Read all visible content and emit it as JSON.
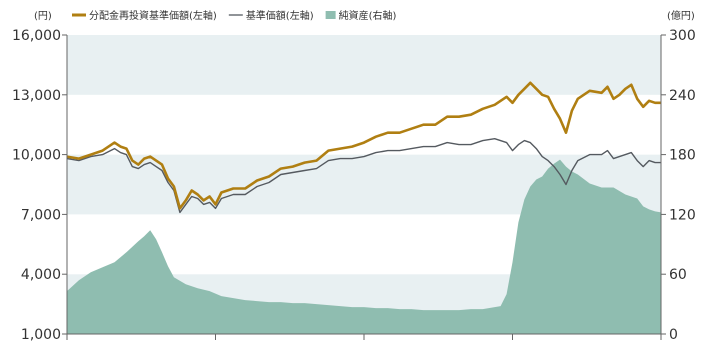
{
  "chart_data": {
    "type": "line",
    "left_unit": "(円)",
    "right_unit": "(億円)",
    "legend": [
      {
        "label": "分配金再投資基準価額(左軸)",
        "color": "#b07f12",
        "kind": "line-thick"
      },
      {
        "label": "基準価額(左軸)",
        "color": "#555a60",
        "kind": "line-thin"
      },
      {
        "label": "純資産(右軸)",
        "color": "#8fbdb0",
        "kind": "area"
      }
    ],
    "y_left": {
      "min": 1000,
      "max": 16000,
      "ticks": [
        "1,000",
        "4,000",
        "7,000",
        "10,000",
        "13,000",
        "16,000"
      ],
      "tick_values": [
        1000,
        4000,
        7000,
        10000,
        13000,
        16000
      ]
    },
    "y_right": {
      "min": 0,
      "max": 300,
      "ticks": [
        "0",
        "60",
        "120",
        "180",
        "240",
        "300"
      ],
      "tick_values": [
        0,
        60,
        120,
        180,
        240,
        300
      ]
    },
    "x_range": [
      0,
      100
    ],
    "x_ticks": [
      0,
      25,
      50,
      75,
      100
    ],
    "band_fills": [
      "#e8f0f2",
      "#ffffff",
      "#e8f0f2",
      "#ffffff",
      "#e8f0f2"
    ],
    "series": [
      {
        "name": "分配金再投資基準価額(左軸)",
        "axis": "left",
        "color": "#b07f12",
        "points": [
          [
            0,
            9900
          ],
          [
            2,
            9800
          ],
          [
            4,
            10000
          ],
          [
            6,
            10200
          ],
          [
            8,
            10600
          ],
          [
            9,
            10400
          ],
          [
            10,
            10300
          ],
          [
            11,
            9700
          ],
          [
            12,
            9500
          ],
          [
            13,
            9800
          ],
          [
            14,
            9900
          ],
          [
            15,
            9700
          ],
          [
            16,
            9500
          ],
          [
            17,
            8800
          ],
          [
            18,
            8400
          ],
          [
            19,
            7300
          ],
          [
            20,
            7700
          ],
          [
            21,
            8200
          ],
          [
            22,
            8000
          ],
          [
            23,
            7700
          ],
          [
            24,
            7900
          ],
          [
            25,
            7500
          ],
          [
            26,
            8100
          ],
          [
            27,
            8200
          ],
          [
            28,
            8300
          ],
          [
            30,
            8300
          ],
          [
            32,
            8700
          ],
          [
            34,
            8900
          ],
          [
            36,
            9300
          ],
          [
            38,
            9400
          ],
          [
            40,
            9600
          ],
          [
            42,
            9700
          ],
          [
            44,
            10200
          ],
          [
            46,
            10300
          ],
          [
            48,
            10400
          ],
          [
            50,
            10600
          ],
          [
            52,
            10900
          ],
          [
            54,
            11100
          ],
          [
            56,
            11100
          ],
          [
            58,
            11300
          ],
          [
            60,
            11500
          ],
          [
            62,
            11500
          ],
          [
            64,
            11900
          ],
          [
            66,
            11900
          ],
          [
            68,
            12000
          ],
          [
            70,
            12300
          ],
          [
            72,
            12500
          ],
          [
            74,
            12900
          ],
          [
            75,
            12600
          ],
          [
            76,
            13000
          ],
          [
            77,
            13300
          ],
          [
            78,
            13600
          ],
          [
            79,
            13300
          ],
          [
            80,
            13000
          ],
          [
            81,
            12900
          ],
          [
            82,
            12300
          ],
          [
            83,
            11800
          ],
          [
            84,
            11100
          ],
          [
            85,
            12200
          ],
          [
            86,
            12800
          ],
          [
            88,
            13200
          ],
          [
            90,
            13100
          ],
          [
            91,
            13400
          ],
          [
            92,
            12800
          ],
          [
            93,
            13000
          ],
          [
            94,
            13300
          ],
          [
            95,
            13500
          ],
          [
            96,
            12800
          ],
          [
            97,
            12400
          ],
          [
            98,
            12700
          ],
          [
            99,
            12600
          ],
          [
            100,
            12600
          ]
        ]
      },
      {
        "name": "基準価額(左軸)",
        "axis": "left",
        "color": "#555a60",
        "points": [
          [
            0,
            9800
          ],
          [
            2,
            9700
          ],
          [
            4,
            9900
          ],
          [
            6,
            10000
          ],
          [
            8,
            10300
          ],
          [
            9,
            10100
          ],
          [
            10,
            10000
          ],
          [
            11,
            9400
          ],
          [
            12,
            9300
          ],
          [
            13,
            9500
          ],
          [
            14,
            9600
          ],
          [
            15,
            9400
          ],
          [
            16,
            9200
          ],
          [
            17,
            8600
          ],
          [
            18,
            8200
          ],
          [
            19,
            7100
          ],
          [
            20,
            7500
          ],
          [
            21,
            7900
          ],
          [
            22,
            7800
          ],
          [
            23,
            7500
          ],
          [
            24,
            7600
          ],
          [
            25,
            7300
          ],
          [
            26,
            7800
          ],
          [
            27,
            7900
          ],
          [
            28,
            8000
          ],
          [
            30,
            8000
          ],
          [
            32,
            8400
          ],
          [
            34,
            8600
          ],
          [
            36,
            9000
          ],
          [
            38,
            9100
          ],
          [
            40,
            9200
          ],
          [
            42,
            9300
          ],
          [
            44,
            9700
          ],
          [
            46,
            9800
          ],
          [
            48,
            9800
          ],
          [
            50,
            9900
          ],
          [
            52,
            10100
          ],
          [
            54,
            10200
          ],
          [
            56,
            10200
          ],
          [
            58,
            10300
          ],
          [
            60,
            10400
          ],
          [
            62,
            10400
          ],
          [
            64,
            10600
          ],
          [
            66,
            10500
          ],
          [
            68,
            10500
          ],
          [
            70,
            10700
          ],
          [
            72,
            10800
          ],
          [
            74,
            10600
          ],
          [
            75,
            10200
          ],
          [
            76,
            10500
          ],
          [
            77,
            10700
          ],
          [
            78,
            10600
          ],
          [
            79,
            10300
          ],
          [
            80,
            9900
          ],
          [
            81,
            9700
          ],
          [
            82,
            9400
          ],
          [
            83,
            9000
          ],
          [
            84,
            8500
          ],
          [
            85,
            9200
          ],
          [
            86,
            9700
          ],
          [
            88,
            10000
          ],
          [
            90,
            10000
          ],
          [
            91,
            10200
          ],
          [
            92,
            9800
          ],
          [
            93,
            9900
          ],
          [
            94,
            10000
          ],
          [
            95,
            10100
          ],
          [
            96,
            9700
          ],
          [
            97,
            9400
          ],
          [
            98,
            9700
          ],
          [
            99,
            9600
          ],
          [
            100,
            9600
          ]
        ]
      },
      {
        "name": "純資産(右軸)",
        "axis": "right",
        "color": "#8fbdb0",
        "points": [
          [
            0,
            43
          ],
          [
            2,
            54
          ],
          [
            4,
            62
          ],
          [
            6,
            67
          ],
          [
            8,
            72
          ],
          [
            10,
            82
          ],
          [
            12,
            93
          ],
          [
            13,
            98
          ],
          [
            14,
            104
          ],
          [
            15,
            95
          ],
          [
            16,
            82
          ],
          [
            17,
            68
          ],
          [
            18,
            57
          ],
          [
            20,
            50
          ],
          [
            22,
            46
          ],
          [
            24,
            43
          ],
          [
            26,
            38
          ],
          [
            28,
            36
          ],
          [
            30,
            34
          ],
          [
            32,
            33
          ],
          [
            34,
            32
          ],
          [
            36,
            32
          ],
          [
            38,
            31
          ],
          [
            40,
            31
          ],
          [
            42,
            30
          ],
          [
            44,
            29
          ],
          [
            46,
            28
          ],
          [
            48,
            27
          ],
          [
            50,
            27
          ],
          [
            52,
            26
          ],
          [
            54,
            26
          ],
          [
            56,
            25
          ],
          [
            58,
            25
          ],
          [
            60,
            24
          ],
          [
            62,
            24
          ],
          [
            64,
            24
          ],
          [
            66,
            24
          ],
          [
            68,
            25
          ],
          [
            70,
            25
          ],
          [
            72,
            27
          ],
          [
            73,
            28
          ],
          [
            74,
            40
          ],
          [
            75,
            72
          ],
          [
            76,
            112
          ],
          [
            77,
            135
          ],
          [
            78,
            148
          ],
          [
            79,
            155
          ],
          [
            80,
            158
          ],
          [
            81,
            166
          ],
          [
            82,
            171
          ],
          [
            83,
            175
          ],
          [
            84,
            168
          ],
          [
            85,
            163
          ],
          [
            86,
            160
          ],
          [
            88,
            151
          ],
          [
            90,
            147
          ],
          [
            92,
            147
          ],
          [
            94,
            140
          ],
          [
            96,
            136
          ],
          [
            97,
            128
          ],
          [
            98,
            125
          ],
          [
            99,
            123
          ],
          [
            100,
            122
          ]
        ]
      }
    ],
    "grid": true,
    "legend_position": "top"
  }
}
